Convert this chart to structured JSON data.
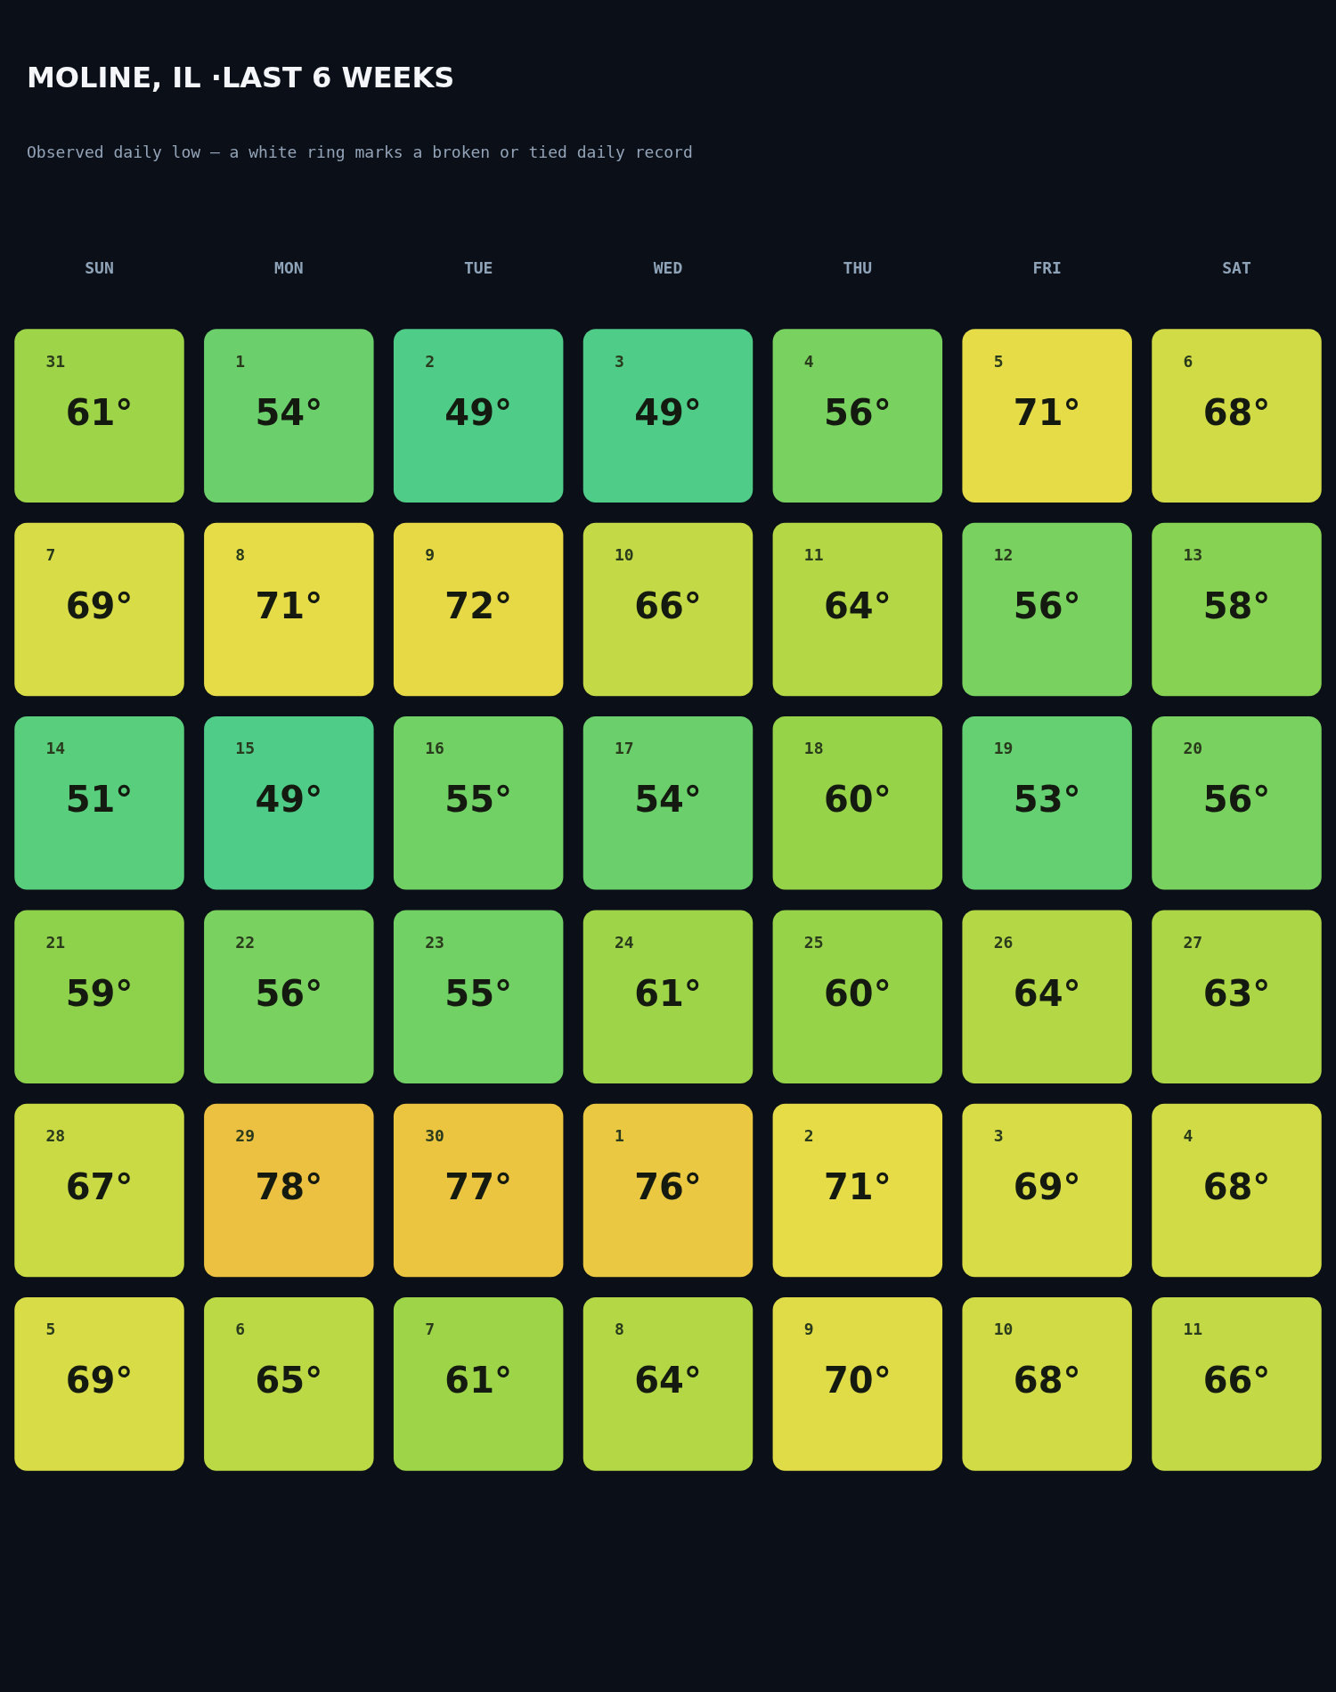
{
  "chart_data": {
    "type": "heatmap",
    "title": "MOLINE, IL ·LAST 6 WEEKS",
    "subtitle": "Observed daily low — a white ring marks a broken or tied daily record",
    "categories": [
      "SUN",
      "MON",
      "TUE",
      "WED",
      "THU",
      "FRI",
      "SAT"
    ],
    "y_categories": [
      null,
      null,
      null,
      null,
      null,
      null
    ],
    "tick_labels": "x",
    "cells": [
      [
        61,
        54,
        49,
        49,
        56,
        71,
        68
      ],
      [
        69,
        71,
        72,
        66,
        64,
        56,
        58
      ],
      [
        51,
        49,
        55,
        54,
        60,
        53,
        56
      ],
      [
        59,
        56,
        55,
        61,
        60,
        64,
        63
      ],
      [
        67,
        78,
        77,
        76,
        71,
        69,
        68
      ],
      [
        69,
        65,
        61,
        64,
        70,
        68,
        66
      ]
    ],
    "cell_labels": [
      [
        "61°",
        "54°",
        "49°",
        "49°",
        "56°",
        "71°",
        "68°"
      ],
      [
        "69°",
        "71°",
        "72°",
        "66°",
        "64°",
        "56°",
        "58°"
      ],
      [
        "51°",
        "49°",
        "55°",
        "54°",
        "60°",
        "53°",
        "56°"
      ],
      [
        "59°",
        "56°",
        "55°",
        "61°",
        "60°",
        "64°",
        "63°"
      ],
      [
        "67°",
        "78°",
        "77°",
        "76°",
        "71°",
        "69°",
        "68°"
      ],
      [
        "69°",
        "65°",
        "61°",
        "64°",
        "70°",
        "68°",
        "66°"
      ]
    ],
    "annotations": [
      "31",
      "1",
      "2",
      "3",
      "4",
      "5",
      "6",
      "7",
      "8",
      "9",
      "10",
      "11",
      "12",
      "13",
      "14",
      "15",
      "16",
      "17",
      "18",
      "19",
      "20",
      "21",
      "22",
      "23",
      "24",
      "25",
      "26",
      "27",
      "28",
      "29",
      "30",
      "1",
      "2",
      "3",
      "4",
      "5",
      "6",
      "7",
      "8",
      "9",
      "10",
      "11"
    ]
  }
}
